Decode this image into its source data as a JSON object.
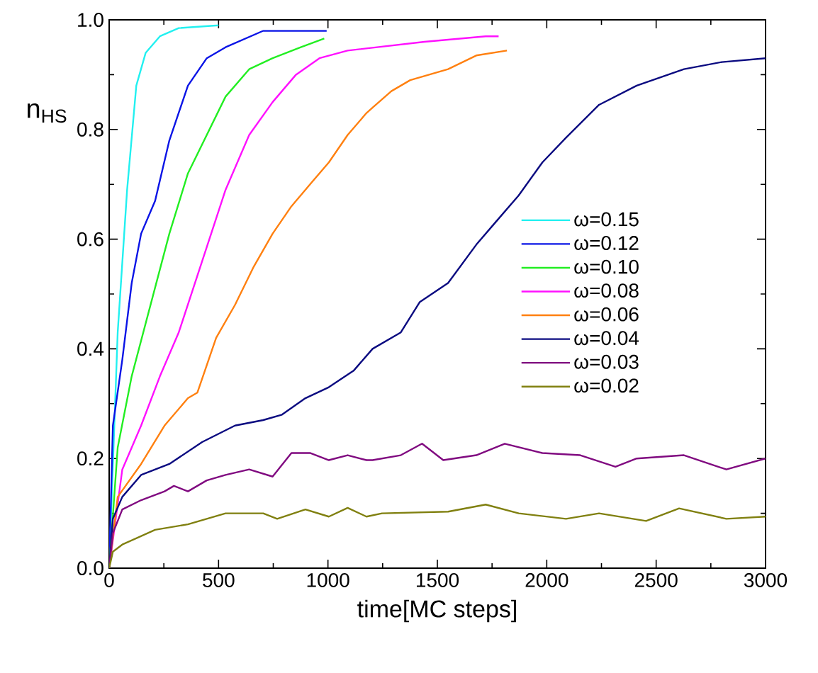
{
  "chart_data": {
    "type": "line",
    "xlabel": "time[MC steps]",
    "ylabel": "n$_{HS}$",
    "xlim": [
      0,
      3000
    ],
    "ylim": [
      0,
      1
    ],
    "xticks": [
      0,
      500,
      1000,
      1500,
      2000,
      2500,
      3000
    ],
    "yticks": [
      {
        "value": 0,
        "label": "0.0"
      },
      {
        "value": 0.2,
        "label": "0.2"
      },
      {
        "value": 0.4,
        "label": "0.4"
      },
      {
        "value": 0.6,
        "label": "0.6"
      },
      {
        "value": 0.8,
        "label": "0.8"
      },
      {
        "value": 1,
        "label": "1.0"
      }
    ],
    "grid": false,
    "legend": "right",
    "marker": "none",
    "line_style": "solid",
    "series": [
      {
        "name": "ω=0.15",
        "color": "#22f0f0",
        "x": [
          0,
          39,
          82,
          124,
          167,
          232,
          318,
          500
        ],
        "values": [
          0,
          0.43,
          0.69,
          0.88,
          0.94,
          0.97,
          0.985,
          0.99
        ]
      },
      {
        "name": "ω=0.12",
        "color": "#0a14e6",
        "x": [
          0,
          17,
          60,
          103,
          146,
          210,
          275,
          360,
          446,
          532,
          704,
          994
        ],
        "values": [
          0,
          0.26,
          0.38,
          0.52,
          0.61,
          0.67,
          0.78,
          0.88,
          0.93,
          0.95,
          0.98,
          0.98
        ]
      },
      {
        "name": "ω=0.10",
        "color": "#22ee22",
        "x": [
          0,
          39,
          103,
          189,
          275,
          360,
          446,
          532,
          640,
          747,
          876,
          983
        ],
        "values": [
          0,
          0.22,
          0.35,
          0.48,
          0.61,
          0.72,
          0.79,
          0.86,
          0.91,
          0.93,
          0.95,
          0.966
        ]
      },
      {
        "name": "ω=0.08",
        "color": "#ff10ff",
        "x": [
          0,
          60,
          146,
          232,
          318,
          425,
          532,
          640,
          747,
          854,
          961,
          1090,
          1441,
          1721,
          1780
        ],
        "values": [
          0,
          0.18,
          0.26,
          0.35,
          0.43,
          0.56,
          0.69,
          0.79,
          0.85,
          0.9,
          0.93,
          0.944,
          0.96,
          0.97,
          0.97
        ]
      },
      {
        "name": "ω=0.06",
        "color": "#ff8010",
        "x": [
          0,
          39,
          146,
          253,
          360,
          403,
          489,
          575,
          661,
          747,
          833,
          918,
          1004,
          1090,
          1176,
          1204,
          1290,
          1376,
          1549,
          1678,
          1818
        ],
        "values": [
          0,
          0.13,
          0.19,
          0.26,
          0.31,
          0.32,
          0.42,
          0.48,
          0.55,
          0.61,
          0.66,
          0.7,
          0.74,
          0.79,
          0.83,
          0.84,
          0.87,
          0.89,
          0.91,
          0.935,
          0.944
        ]
      },
      {
        "name": "ω=0.04",
        "color": "#0a0a80",
        "x": [
          0,
          17,
          60,
          146,
          275,
          425,
          575,
          704,
          790,
          897,
          1004,
          1117,
          1204,
          1333,
          1419,
          1549,
          1678,
          1764,
          1872,
          1980,
          2088,
          2239,
          2411,
          2627,
          2800,
          3000
        ],
        "values": [
          0,
          0.09,
          0.13,
          0.17,
          0.19,
          0.23,
          0.26,
          0.27,
          0.28,
          0.31,
          0.33,
          0.36,
          0.4,
          0.43,
          0.485,
          0.52,
          0.59,
          0.63,
          0.68,
          0.74,
          0.785,
          0.845,
          0.88,
          0.91,
          0.923,
          0.93
        ]
      },
      {
        "name": "ω=0.03",
        "color": "#800a80",
        "x": [
          0,
          17,
          60,
          146,
          253,
          296,
          360,
          446,
          532,
          640,
          747,
          833,
          918,
          1004,
          1090,
          1176,
          1204,
          1333,
          1430,
          1527,
          1678,
          1808,
          1980,
          2153,
          2314,
          2411,
          2627,
          2821,
          3000
        ],
        "values": [
          0,
          0.064,
          0.107,
          0.124,
          0.14,
          0.15,
          0.14,
          0.16,
          0.17,
          0.18,
          0.167,
          0.21,
          0.21,
          0.197,
          0.206,
          0.197,
          0.197,
          0.206,
          0.227,
          0.197,
          0.206,
          0.227,
          0.21,
          0.206,
          0.185,
          0.2,
          0.206,
          0.18,
          0.2
        ]
      },
      {
        "name": "ω=0.02",
        "color": "#808010",
        "x": [
          0,
          17,
          60,
          210,
          360,
          532,
          704,
          768,
          897,
          1004,
          1090,
          1176,
          1247,
          1549,
          1721,
          1872,
          2088,
          2239,
          2454,
          2605,
          2821,
          3000
        ],
        "values": [
          0,
          0.03,
          0.043,
          0.07,
          0.08,
          0.1,
          0.1,
          0.09,
          0.107,
          0.094,
          0.11,
          0.094,
          0.1,
          0.103,
          0.116,
          0.1,
          0.09,
          0.1,
          0.086,
          0.109,
          0.09,
          0.094
        ]
      }
    ]
  }
}
